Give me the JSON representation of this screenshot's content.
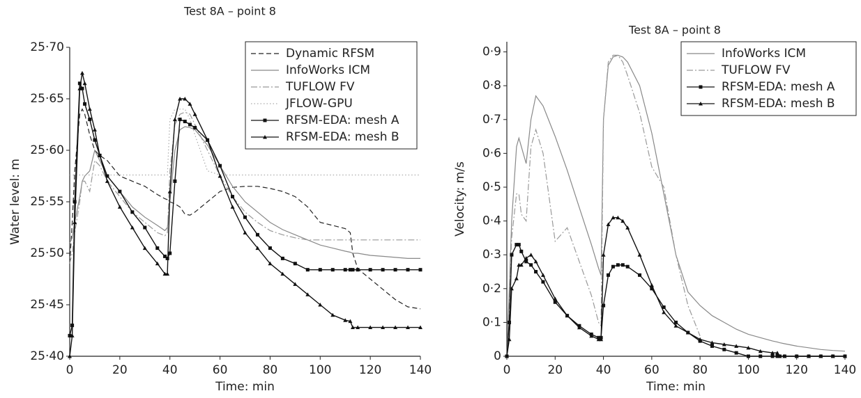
{
  "chart_data": [
    {
      "type": "line",
      "title": "Test 8A – point 8",
      "xlabel": "Time: min",
      "ylabel": "Water level: m",
      "xlim": [
        0,
        140
      ],
      "xticks": [
        0,
        20,
        40,
        60,
        80,
        100,
        120,
        140
      ],
      "ylim": [
        25.4,
        25.7
      ],
      "yticks": [
        {
          "value": 25.4,
          "label": "25·40"
        },
        {
          "value": 25.45,
          "label": "25·45"
        },
        {
          "value": 25.5,
          "label": "25·50"
        },
        {
          "value": 25.55,
          "label": "25·55"
        },
        {
          "value": 25.6,
          "label": "25·60"
        },
        {
          "value": 25.65,
          "label": "25·65"
        },
        {
          "value": 25.7,
          "label": "25·70"
        }
      ],
      "legend": "upper right",
      "x": [
        0,
        1,
        2,
        4,
        5,
        6,
        8,
        10,
        12,
        15,
        20,
        25,
        30,
        35,
        38,
        39,
        40,
        42,
        44,
        46,
        48,
        50,
        55,
        60,
        65,
        70,
        75,
        80,
        85,
        90,
        95,
        100,
        105,
        110,
        112,
        113,
        115,
        120,
        125,
        130,
        135,
        140
      ],
      "series": [
        {
          "name": "Dynamic RFSM",
          "color": "#222222",
          "style": "dashed",
          "values": [
            25.49,
            25.53,
            25.58,
            25.635,
            25.64,
            25.635,
            25.615,
            25.6,
            25.595,
            25.59,
            25.575,
            25.57,
            25.565,
            25.557,
            25.553,
            25.552,
            25.55,
            25.548,
            25.545,
            25.538,
            25.537,
            25.54,
            25.55,
            25.56,
            25.564,
            25.565,
            25.565,
            25.563,
            25.56,
            25.555,
            25.545,
            25.53,
            25.527,
            25.524,
            25.52,
            25.5,
            25.485,
            25.475,
            25.465,
            25.455,
            25.448,
            25.446
          ]
        },
        {
          "name": "InfoWorks ICM",
          "color": "#888888",
          "style": "solid",
          "values": [
            25.51,
            25.515,
            25.53,
            25.555,
            25.57,
            25.575,
            25.58,
            25.6,
            25.59,
            25.575,
            25.56,
            25.545,
            25.535,
            25.527,
            25.522,
            25.525,
            25.55,
            25.6,
            25.62,
            25.623,
            25.622,
            25.62,
            25.605,
            25.585,
            25.565,
            25.55,
            25.54,
            25.53,
            25.523,
            25.518,
            25.513,
            25.508,
            25.505,
            25.502,
            25.501,
            25.5,
            25.5,
            25.498,
            25.497,
            25.496,
            25.495,
            25.495
          ]
        },
        {
          "name": "TUFLOW FV",
          "color": "#999999",
          "style": "dashdot",
          "values": [
            25.49,
            25.5,
            25.52,
            25.55,
            25.57,
            25.57,
            25.56,
            25.59,
            25.585,
            25.57,
            25.555,
            25.54,
            25.53,
            25.52,
            25.517,
            25.52,
            25.58,
            25.625,
            25.635,
            25.637,
            25.635,
            25.625,
            25.6,
            25.575,
            25.555,
            25.54,
            25.53,
            25.522,
            25.518,
            25.515,
            25.513,
            25.513,
            25.513,
            25.513,
            25.513,
            25.513,
            25.513,
            25.513,
            25.513,
            25.513,
            25.513,
            25.513
          ]
        },
        {
          "name": "JFLOW-GPU",
          "color": "#aaaaaa",
          "style": "dotted",
          "values": [
            25.576,
            25.576,
            25.576,
            25.576,
            25.576,
            25.576,
            25.576,
            25.576,
            25.576,
            25.576,
            25.576,
            25.576,
            25.576,
            25.576,
            25.576,
            25.576,
            25.63,
            25.64,
            25.64,
            25.64,
            25.63,
            25.615,
            25.58,
            25.576,
            25.576,
            25.576,
            25.576,
            25.576,
            25.576,
            25.576,
            25.576,
            25.576,
            25.576,
            25.576,
            25.576,
            25.576,
            25.576,
            25.576,
            25.576,
            25.576,
            25.576,
            25.576
          ]
        },
        {
          "name": "RFSM-EDA: mesh A",
          "color": "#111111",
          "style": "solid",
          "marker": "square",
          "values": [
            25.42,
            25.43,
            25.55,
            25.665,
            25.66,
            25.645,
            25.63,
            25.61,
            25.595,
            25.575,
            25.56,
            25.54,
            25.525,
            25.505,
            25.497,
            25.495,
            25.5,
            25.57,
            25.63,
            25.628,
            25.625,
            25.622,
            25.61,
            25.585,
            25.555,
            25.535,
            25.518,
            25.505,
            25.495,
            25.49,
            25.484,
            25.484,
            25.484,
            25.484,
            25.484,
            25.484,
            25.484,
            25.484,
            25.484,
            25.484,
            25.484,
            25.484
          ]
        },
        {
          "name": "RFSM-EDA: mesh B",
          "color": "#111111",
          "style": "solid",
          "marker": "triangle",
          "values": [
            25.4,
            25.42,
            25.53,
            25.66,
            25.675,
            25.665,
            25.64,
            25.62,
            25.595,
            25.57,
            25.545,
            25.525,
            25.505,
            25.49,
            25.48,
            25.48,
            25.56,
            25.63,
            25.65,
            25.65,
            25.645,
            25.635,
            25.61,
            25.575,
            25.545,
            25.52,
            25.505,
            25.49,
            25.48,
            25.47,
            25.46,
            25.45,
            25.44,
            25.435,
            25.434,
            25.428,
            25.428,
            25.428,
            25.428,
            25.428,
            25.428,
            25.428
          ]
        }
      ]
    },
    {
      "type": "line",
      "title": "Test 8A – point 8",
      "xlabel": "Time: min",
      "ylabel": "Velocity: m/s",
      "xlim": [
        0,
        140
      ],
      "xticks": [
        0,
        20,
        40,
        60,
        80,
        100,
        120,
        140
      ],
      "ylim": [
        0,
        0.93
      ],
      "yticks": [
        0,
        {
          "value": 0.1,
          "label": "0·1"
        },
        {
          "value": 0.2,
          "label": "0·2"
        },
        {
          "value": 0.3,
          "label": "0·3"
        },
        {
          "value": 0.4,
          "label": "0·4"
        },
        {
          "value": 0.5,
          "label": "0·5"
        },
        {
          "value": 0.6,
          "label": "0·6"
        },
        {
          "value": 0.7,
          "label": "0·7"
        },
        {
          "value": 0.8,
          "label": "0·8"
        },
        {
          "value": 0.9,
          "label": "0·9"
        }
      ],
      "legend": "upper right",
      "x": [
        0,
        1,
        2,
        4,
        5,
        6,
        8,
        10,
        12,
        15,
        20,
        25,
        30,
        35,
        38,
        39,
        40,
        42,
        44,
        46,
        48,
        50,
        55,
        60,
        65,
        70,
        75,
        80,
        85,
        90,
        95,
        100,
        105,
        110,
        112,
        113,
        115,
        120,
        125,
        130,
        135,
        140
      ],
      "series": [
        {
          "name": "InfoWorks ICM",
          "color": "#888888",
          "style": "solid",
          "values": [
            0,
            0.2,
            0.4,
            0.62,
            0.645,
            0.62,
            0.57,
            0.7,
            0.77,
            0.74,
            0.65,
            0.55,
            0.44,
            0.33,
            0.26,
            0.24,
            0.7,
            0.86,
            0.885,
            0.89,
            0.885,
            0.87,
            0.8,
            0.66,
            0.48,
            0.3,
            0.19,
            0.15,
            0.12,
            0.1,
            0.08,
            0.065,
            0.055,
            0.045,
            0.042,
            0.04,
            0.037,
            0.03,
            0.025,
            0.02,
            0.017,
            0.015
          ]
        },
        {
          "name": "TUFLOW FV",
          "color": "#999999",
          "style": "dashdot",
          "values": [
            0,
            0.15,
            0.35,
            0.48,
            0.48,
            0.42,
            0.4,
            0.62,
            0.67,
            0.6,
            0.34,
            0.38,
            0.28,
            0.18,
            0.1,
            0.09,
            0.7,
            0.87,
            0.89,
            0.89,
            0.87,
            0.83,
            0.72,
            0.56,
            0.5,
            0.3,
            0.15,
            0.06,
            null,
            null,
            null,
            null,
            null,
            null,
            null,
            null,
            null,
            null,
            null,
            null,
            null,
            null
          ]
        },
        {
          "name": "RFSM-EDA: mesh A",
          "color": "#111111",
          "style": "solid",
          "marker": "square",
          "values": [
            0,
            0.1,
            0.3,
            0.33,
            0.33,
            0.31,
            0.28,
            0.27,
            0.25,
            0.22,
            0.16,
            0.12,
            0.09,
            0.065,
            0.055,
            0.055,
            0.15,
            0.24,
            0.265,
            0.27,
            0.27,
            0.265,
            0.24,
            0.2,
            0.145,
            0.1,
            0.07,
            0.045,
            0.03,
            0.02,
            0.01,
            0,
            0,
            0,
            0,
            0,
            0,
            0,
            0,
            0,
            0,
            0
          ]
        },
        {
          "name": "RFSM-EDA: mesh B",
          "color": "#111111",
          "style": "solid",
          "marker": "triangle",
          "values": [
            0,
            0.05,
            0.2,
            0.23,
            0.27,
            0.27,
            0.29,
            0.3,
            0.28,
            0.24,
            0.17,
            0.12,
            0.085,
            0.06,
            0.05,
            0.05,
            0.3,
            0.39,
            0.41,
            0.41,
            0.4,
            0.38,
            0.3,
            0.21,
            0.13,
            0.09,
            0.07,
            0.05,
            0.04,
            0.035,
            0.03,
            0.025,
            0.015,
            0.01,
            0.01,
            0,
            0,
            0,
            0,
            0,
            0,
            0
          ]
        }
      ]
    }
  ]
}
